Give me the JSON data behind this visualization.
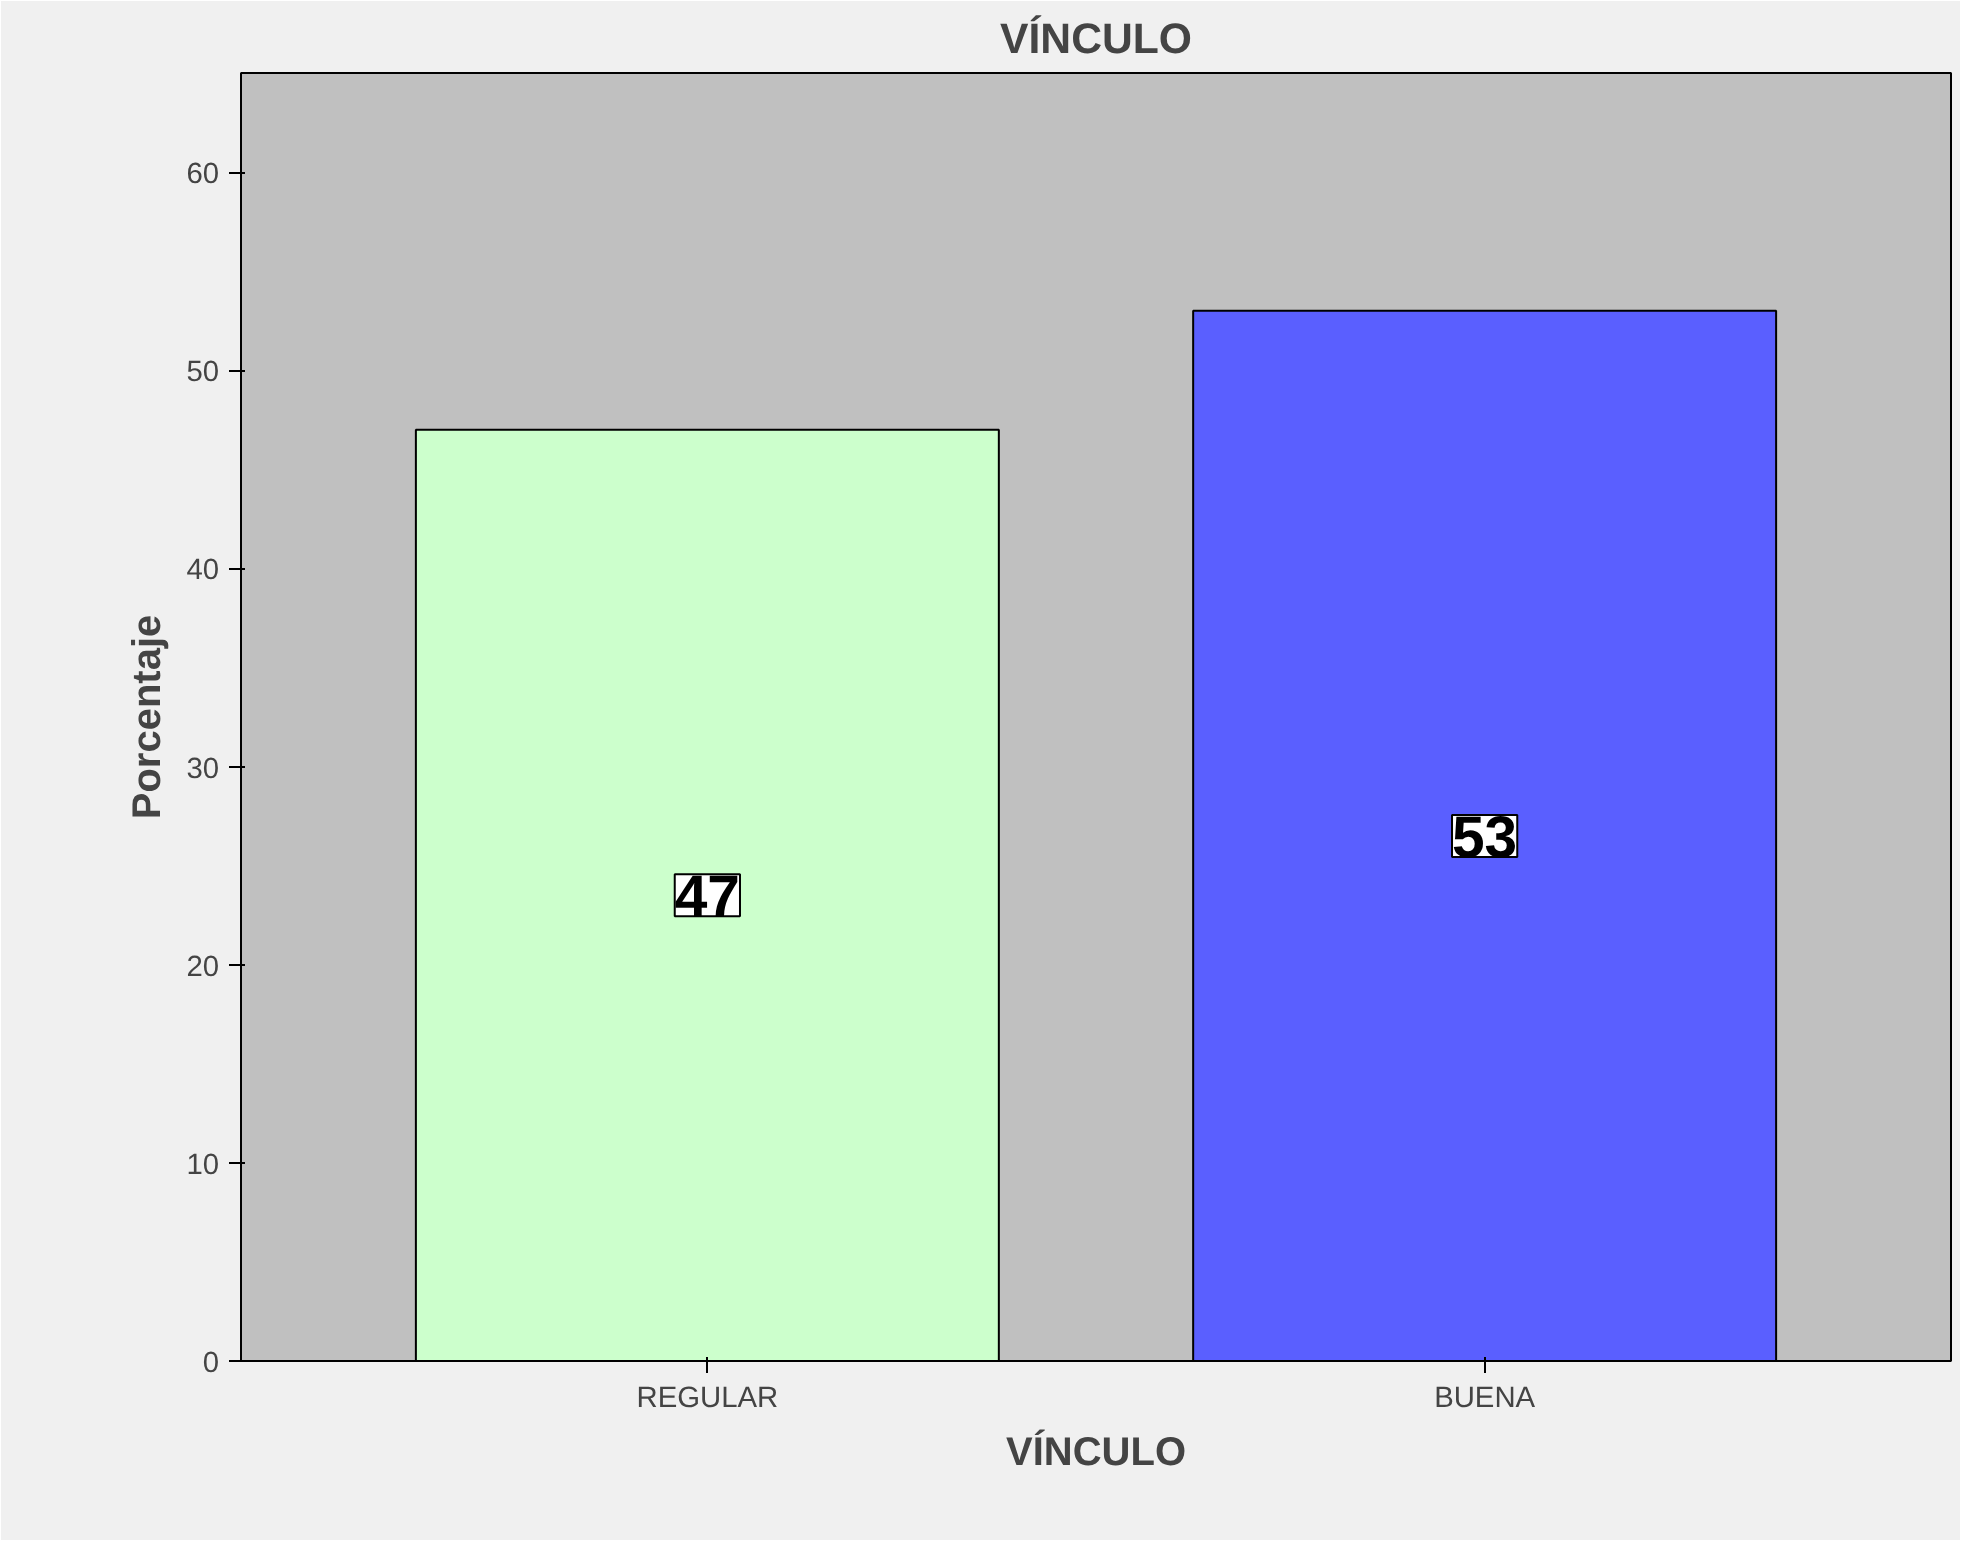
{
  "chart_data": {
    "type": "bar",
    "title": "VÍNCULO",
    "xlabel": "VÍNCULO",
    "ylabel": "Porcentaje",
    "categories": [
      "REGULAR",
      "BUENA"
    ],
    "values": [
      47,
      53
    ],
    "colors": [
      "#ccffcc",
      "#5a5fff"
    ],
    "ylim": [
      0,
      65
    ],
    "yticks": [
      0,
      10,
      20,
      30,
      40,
      50,
      60
    ],
    "data_labels": true,
    "grid": false
  }
}
